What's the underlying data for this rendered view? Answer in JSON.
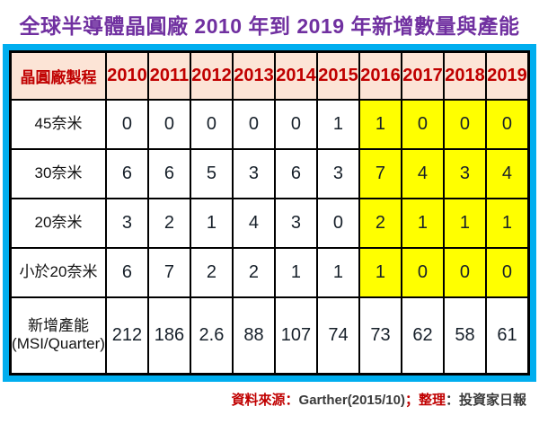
{
  "title": "全球半導體晶圓廠 2010 年到 2019 年新增數量與產能",
  "colors": {
    "title_purple": "#7030A0",
    "frame_blue": "#00AEEF",
    "header_bg_peach": "#FCE4D6",
    "header_text_red": "#C00000",
    "highlight_yellow": "#FFFF00",
    "cell_text_dark": "#17202A",
    "source_label_red": "#C00000",
    "source_text_dark": "#3B3B3B"
  },
  "table": {
    "header": [
      "晶圓廠製程",
      "2010",
      "2011",
      "2012",
      "2013",
      "2014",
      "2015",
      "2016",
      "2017",
      "2018",
      "2019"
    ],
    "rows": [
      {
        "label": "45奈米",
        "values": [
          "0",
          "0",
          "0",
          "0",
          "0",
          "1",
          "1",
          "0",
          "0",
          "0"
        ],
        "highlight_from": 6,
        "tall": false
      },
      {
        "label": "30奈米",
        "values": [
          "6",
          "6",
          "5",
          "3",
          "6",
          "3",
          "7",
          "4",
          "3",
          "4"
        ],
        "highlight_from": 6,
        "tall": false
      },
      {
        "label": "20奈米",
        "values": [
          "3",
          "2",
          "1",
          "4",
          "3",
          "0",
          "2",
          "1",
          "1",
          "1"
        ],
        "highlight_from": 6,
        "tall": false
      },
      {
        "label": "小於20奈米",
        "values": [
          "6",
          "7",
          "2",
          "2",
          "1",
          "1",
          "1",
          "0",
          "0",
          "0"
        ],
        "highlight_from": 6,
        "tall": false
      },
      {
        "label": "新增產能\n(MSI/Quarter)",
        "values": [
          "212",
          "186",
          "2.6",
          "88",
          "107",
          "74",
          "73",
          "62",
          "58",
          "61"
        ],
        "highlight_from": -1,
        "tall": true
      }
    ]
  },
  "chart_data": {
    "type": "table",
    "title": "全球半導體晶圓廠 2010 年到 2019 年新增數量與產能",
    "categories": [
      "2010",
      "2011",
      "2012",
      "2013",
      "2014",
      "2015",
      "2016",
      "2017",
      "2018",
      "2019"
    ],
    "series": [
      {
        "name": "45奈米",
        "values": [
          0,
          0,
          0,
          0,
          0,
          1,
          1,
          0,
          0,
          0
        ]
      },
      {
        "name": "30奈米",
        "values": [
          6,
          6,
          5,
          3,
          6,
          3,
          7,
          4,
          3,
          4
        ]
      },
      {
        "name": "20奈米",
        "values": [
          3,
          2,
          1,
          4,
          3,
          0,
          2,
          1,
          1,
          1
        ]
      },
      {
        "name": "小於20奈米",
        "values": [
          6,
          7,
          2,
          2,
          1,
          1,
          1,
          0,
          0,
          0
        ]
      },
      {
        "name": "新增產能(MSI/Quarter)",
        "values": [
          212,
          186,
          2.6,
          88,
          107,
          74,
          73,
          62,
          58,
          61
        ]
      }
    ],
    "highlighted_years": [
      "2016",
      "2017",
      "2018",
      "2019"
    ]
  },
  "footer": {
    "segments": [
      {
        "text": "資料來源：",
        "color": "#C00000"
      },
      {
        "text": "Garther(2015/10)",
        "color": "#3B3B3B"
      },
      {
        "text": "；",
        "color": "#C00000"
      },
      {
        "text": "整理",
        "color": "#C00000"
      },
      {
        "text": "：投資家日報",
        "color": "#3B3B3B"
      }
    ]
  }
}
